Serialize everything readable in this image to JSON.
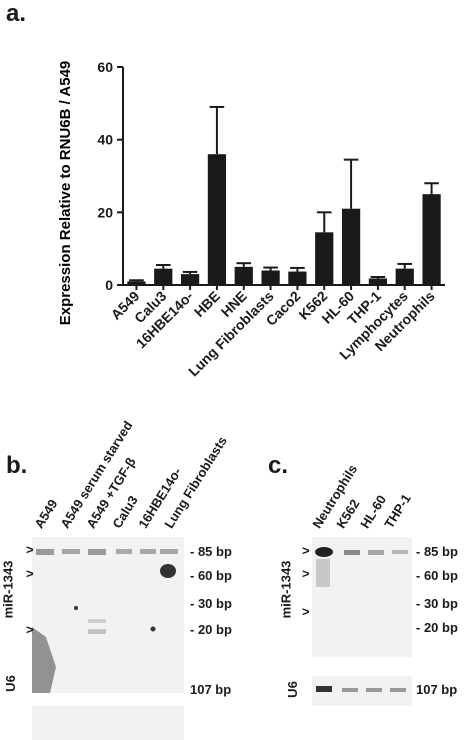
{
  "figure": {
    "panel_a": {
      "label": "a."
    },
    "panel_b": {
      "label": "b.",
      "lanes": [
        "A549",
        "A549 serum starved",
        "A549 +TGF-β",
        "Calu3",
        "16HBE14o-",
        "Lung Fibroblasts"
      ],
      "side_label": "miR-1343",
      "markers": [
        "85 bp",
        "60 bp",
        "30 bp",
        "20 bp"
      ],
      "u6_label": "U6",
      "u6_marker": "107 bp"
    },
    "panel_c": {
      "label": "c.",
      "lanes": [
        "Neutrophils",
        "K562",
        "HL-60",
        "THP-1"
      ],
      "side_label": "miR-1343",
      "markers": [
        "85 bp",
        "60 bp",
        "30 bp",
        "20 bp"
      ],
      "u6_label": "U6",
      "u6_marker": "107 bp"
    }
  },
  "chart_data": {
    "type": "bar",
    "title": "",
    "xlabel": "",
    "ylabel": "Expression Relative to RNU6B / A549",
    "ylim": [
      0,
      60
    ],
    "yticks": [
      "0",
      "20",
      "40",
      "60"
    ],
    "categories": [
      "A549",
      "Calu3",
      "16HBE14o-",
      "HBE",
      "HNE",
      "Lung Fibroblasts",
      "Caco2",
      "K562",
      "HL-60",
      "THP-1",
      "Lymphocytes",
      "Neutrophils"
    ],
    "values": [
      1,
      4.5,
      3,
      36,
      5,
      4,
      3.7,
      14.5,
      21,
      1.8,
      4.5,
      25
    ],
    "errors": [
      0.3,
      1,
      0.6,
      13,
      1,
      0.8,
      1,
      5.5,
      13.5,
      0.4,
      1.3,
      3
    ],
    "bar_color": "#1a1a1a",
    "grid": false
  }
}
